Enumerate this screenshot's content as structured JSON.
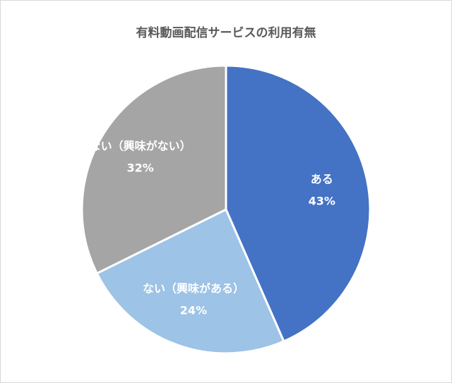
{
  "chart_data": {
    "type": "pie",
    "title": "有料動画配信サービスの利用有無",
    "slices": [
      {
        "label": "ある",
        "value": 43,
        "value_label": "43%",
        "color": "#4472c4"
      },
      {
        "label": "ない（興味がある）",
        "value": 24,
        "value_label": "24%",
        "color": "#9dc3e6"
      },
      {
        "label": "ない（興味がない）",
        "value": 32,
        "value_label": "32%",
        "color": "#a5a5a5"
      }
    ],
    "start": "12 o'clock",
    "direction": "clockwise",
    "slice_border_color": "#ffffff"
  }
}
